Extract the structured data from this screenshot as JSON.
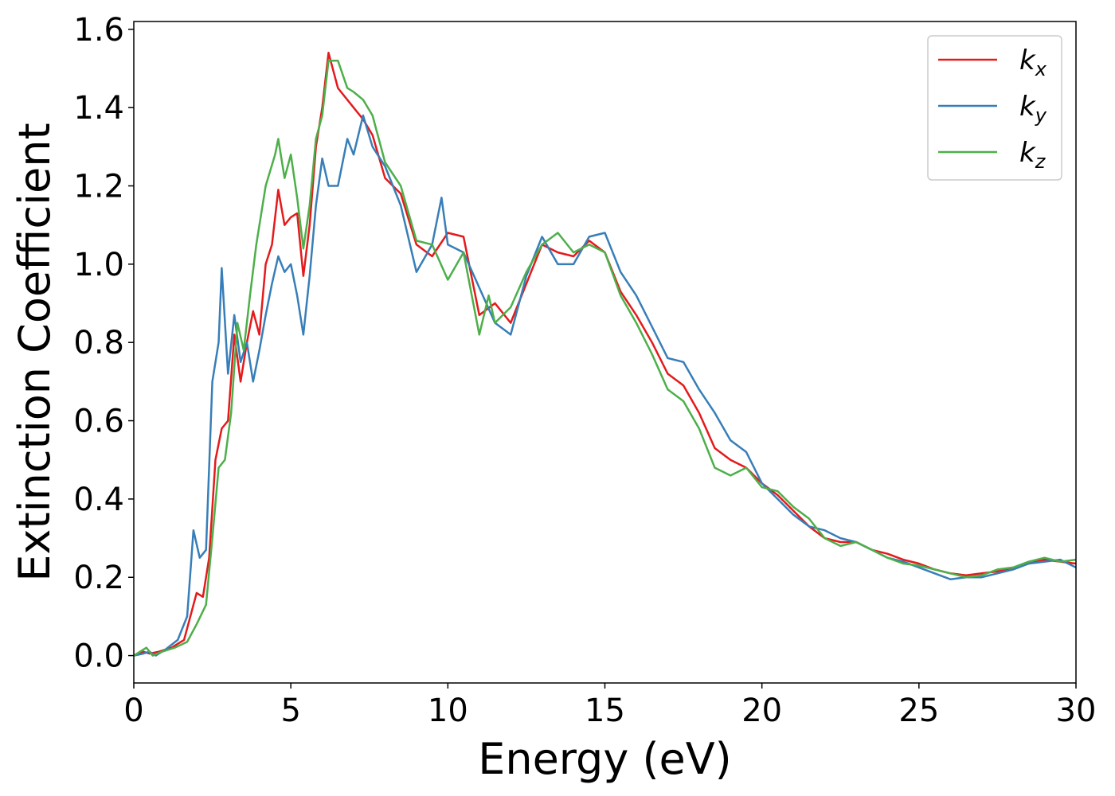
{
  "chart_data": {
    "type": "line",
    "title": "",
    "xlabel": "Energy (eV)",
    "ylabel": "Extinction Coefficient",
    "xlim": [
      0,
      30
    ],
    "ylim": [
      -0.07,
      1.62
    ],
    "xticks": [
      0,
      5,
      10,
      15,
      20,
      25,
      30
    ],
    "xtick_labels": [
      "0",
      "5",
      "10",
      "15",
      "20",
      "25",
      "30"
    ],
    "yticks": [
      0.0,
      0.2,
      0.4,
      0.6,
      0.8,
      1.0,
      1.2,
      1.4,
      1.6
    ],
    "ytick_labels": [
      "0.0",
      "0.2",
      "0.4",
      "0.6",
      "0.8",
      "1.0",
      "1.2",
      "1.4",
      "1.6"
    ],
    "grid": false,
    "legend_position": "top-right",
    "series": [
      {
        "name": "k",
        "subscript": "x",
        "color": "#e41a1c",
        "points": [
          [
            0,
            0
          ],
          [
            0.3,
            0.01
          ],
          [
            0.5,
            0.005
          ],
          [
            0.8,
            0.01
          ],
          [
            1.2,
            0.02
          ],
          [
            1.6,
            0.04
          ],
          [
            1.8,
            0.1
          ],
          [
            2.0,
            0.16
          ],
          [
            2.2,
            0.15
          ],
          [
            2.4,
            0.25
          ],
          [
            2.6,
            0.5
          ],
          [
            2.8,
            0.58
          ],
          [
            3.0,
            0.6
          ],
          [
            3.2,
            0.82
          ],
          [
            3.4,
            0.7
          ],
          [
            3.6,
            0.8
          ],
          [
            3.8,
            0.88
          ],
          [
            4.0,
            0.82
          ],
          [
            4.2,
            1.0
          ],
          [
            4.4,
            1.05
          ],
          [
            4.6,
            1.19
          ],
          [
            4.8,
            1.1
          ],
          [
            5.0,
            1.12
          ],
          [
            5.2,
            1.13
          ],
          [
            5.4,
            0.97
          ],
          [
            5.6,
            1.1
          ],
          [
            5.8,
            1.3
          ],
          [
            6.0,
            1.4
          ],
          [
            6.2,
            1.54
          ],
          [
            6.5,
            1.45
          ],
          [
            6.8,
            1.42
          ],
          [
            7.0,
            1.4
          ],
          [
            7.3,
            1.37
          ],
          [
            7.6,
            1.33
          ],
          [
            8.0,
            1.22
          ],
          [
            8.5,
            1.18
          ],
          [
            9.0,
            1.05
          ],
          [
            9.5,
            1.02
          ],
          [
            10.0,
            1.08
          ],
          [
            10.5,
            1.07
          ],
          [
            11.0,
            0.87
          ],
          [
            11.5,
            0.9
          ],
          [
            12.0,
            0.85
          ],
          [
            12.5,
            0.95
          ],
          [
            13.0,
            1.05
          ],
          [
            13.5,
            1.03
          ],
          [
            14.0,
            1.02
          ],
          [
            14.5,
            1.06
          ],
          [
            15.0,
            1.03
          ],
          [
            15.5,
            0.93
          ],
          [
            16.0,
            0.87
          ],
          [
            16.5,
            0.8
          ],
          [
            17.0,
            0.72
          ],
          [
            17.5,
            0.69
          ],
          [
            18.0,
            0.62
          ],
          [
            18.5,
            0.53
          ],
          [
            19.0,
            0.5
          ],
          [
            19.5,
            0.48
          ],
          [
            20.0,
            0.44
          ],
          [
            20.5,
            0.41
          ],
          [
            21.0,
            0.37
          ],
          [
            21.5,
            0.33
          ],
          [
            22.0,
            0.3
          ],
          [
            22.5,
            0.29
          ],
          [
            23.0,
            0.29
          ],
          [
            23.5,
            0.27
          ],
          [
            24.0,
            0.26
          ],
          [
            24.5,
            0.245
          ],
          [
            25.0,
            0.235
          ],
          [
            25.5,
            0.22
          ],
          [
            26.0,
            0.21
          ],
          [
            26.5,
            0.205
          ],
          [
            27.0,
            0.21
          ],
          [
            27.5,
            0.215
          ],
          [
            28.0,
            0.225
          ],
          [
            28.5,
            0.235
          ],
          [
            29.0,
            0.245
          ],
          [
            29.5,
            0.24
          ],
          [
            30.0,
            0.235
          ]
        ]
      },
      {
        "name": "k",
        "subscript": "y",
        "color": "#377eb8",
        "points": [
          [
            0,
            0
          ],
          [
            0.3,
            0.005
          ],
          [
            0.5,
            0.01
          ],
          [
            0.7,
            0.0
          ],
          [
            1.0,
            0.015
          ],
          [
            1.4,
            0.04
          ],
          [
            1.7,
            0.1
          ],
          [
            1.9,
            0.32
          ],
          [
            2.1,
            0.25
          ],
          [
            2.3,
            0.27
          ],
          [
            2.5,
            0.7
          ],
          [
            2.7,
            0.8
          ],
          [
            2.8,
            0.99
          ],
          [
            3.0,
            0.72
          ],
          [
            3.2,
            0.87
          ],
          [
            3.4,
            0.75
          ],
          [
            3.6,
            0.8
          ],
          [
            3.8,
            0.7
          ],
          [
            4.0,
            0.78
          ],
          [
            4.2,
            0.87
          ],
          [
            4.4,
            0.95
          ],
          [
            4.6,
            1.02
          ],
          [
            4.8,
            0.98
          ],
          [
            5.0,
            1.0
          ],
          [
            5.2,
            0.92
          ],
          [
            5.4,
            0.82
          ],
          [
            5.6,
            0.97
          ],
          [
            5.8,
            1.15
          ],
          [
            6.0,
            1.27
          ],
          [
            6.2,
            1.2
          ],
          [
            6.5,
            1.2
          ],
          [
            6.8,
            1.32
          ],
          [
            7.0,
            1.28
          ],
          [
            7.3,
            1.38
          ],
          [
            7.6,
            1.3
          ],
          [
            8.0,
            1.25
          ],
          [
            8.5,
            1.15
          ],
          [
            9.0,
            0.98
          ],
          [
            9.5,
            1.05
          ],
          [
            9.8,
            1.17
          ],
          [
            10.0,
            1.05
          ],
          [
            10.5,
            1.03
          ],
          [
            11.0,
            0.94
          ],
          [
            11.5,
            0.85
          ],
          [
            12.0,
            0.82
          ],
          [
            12.5,
            0.97
          ],
          [
            13.0,
            1.07
          ],
          [
            13.5,
            1.0
          ],
          [
            14.0,
            1.0
          ],
          [
            14.5,
            1.07
          ],
          [
            15.0,
            1.08
          ],
          [
            15.5,
            0.98
          ],
          [
            16.0,
            0.92
          ],
          [
            16.5,
            0.84
          ],
          [
            17.0,
            0.76
          ],
          [
            17.5,
            0.75
          ],
          [
            18.0,
            0.68
          ],
          [
            18.5,
            0.62
          ],
          [
            19.0,
            0.55
          ],
          [
            19.5,
            0.52
          ],
          [
            20.0,
            0.44
          ],
          [
            20.5,
            0.4
          ],
          [
            21.0,
            0.36
          ],
          [
            21.5,
            0.33
          ],
          [
            22.0,
            0.32
          ],
          [
            22.5,
            0.3
          ],
          [
            23.0,
            0.29
          ],
          [
            23.5,
            0.27
          ],
          [
            24.0,
            0.25
          ],
          [
            24.5,
            0.24
          ],
          [
            25.0,
            0.225
          ],
          [
            25.5,
            0.21
          ],
          [
            26.0,
            0.195
          ],
          [
            26.5,
            0.2
          ],
          [
            27.0,
            0.2
          ],
          [
            27.5,
            0.21
          ],
          [
            28.0,
            0.22
          ],
          [
            28.5,
            0.235
          ],
          [
            29.0,
            0.24
          ],
          [
            29.5,
            0.245
          ],
          [
            30.0,
            0.225
          ]
        ]
      },
      {
        "name": "k",
        "subscript": "z",
        "color": "#4daf4a",
        "points": [
          [
            0,
            0
          ],
          [
            0.4,
            0.02
          ],
          [
            0.6,
            0.0
          ],
          [
            0.9,
            0.01
          ],
          [
            1.3,
            0.02
          ],
          [
            1.7,
            0.035
          ],
          [
            2.0,
            0.08
          ],
          [
            2.3,
            0.13
          ],
          [
            2.5,
            0.3
          ],
          [
            2.7,
            0.48
          ],
          [
            2.9,
            0.5
          ],
          [
            3.1,
            0.62
          ],
          [
            3.3,
            0.85
          ],
          [
            3.5,
            0.78
          ],
          [
            3.7,
            0.92
          ],
          [
            3.9,
            1.05
          ],
          [
            4.2,
            1.2
          ],
          [
            4.5,
            1.28
          ],
          [
            4.6,
            1.32
          ],
          [
            4.8,
            1.22
          ],
          [
            5.0,
            1.28
          ],
          [
            5.2,
            1.17
          ],
          [
            5.4,
            1.04
          ],
          [
            5.6,
            1.15
          ],
          [
            5.8,
            1.32
          ],
          [
            6.0,
            1.38
          ],
          [
            6.2,
            1.52
          ],
          [
            6.5,
            1.52
          ],
          [
            6.8,
            1.45
          ],
          [
            7.0,
            1.44
          ],
          [
            7.3,
            1.42
          ],
          [
            7.6,
            1.38
          ],
          [
            8.0,
            1.26
          ],
          [
            8.5,
            1.2
          ],
          [
            9.0,
            1.06
          ],
          [
            9.5,
            1.05
          ],
          [
            10.0,
            0.96
          ],
          [
            10.5,
            1.03
          ],
          [
            11.0,
            0.82
          ],
          [
            11.3,
            0.92
          ],
          [
            11.5,
            0.85
          ],
          [
            12.0,
            0.89
          ],
          [
            12.5,
            0.98
          ],
          [
            13.0,
            1.05
          ],
          [
            13.5,
            1.08
          ],
          [
            14.0,
            1.03
          ],
          [
            14.5,
            1.05
          ],
          [
            15.0,
            1.03
          ],
          [
            15.5,
            0.92
          ],
          [
            16.0,
            0.85
          ],
          [
            16.5,
            0.77
          ],
          [
            17.0,
            0.68
          ],
          [
            17.5,
            0.65
          ],
          [
            18.0,
            0.58
          ],
          [
            18.5,
            0.48
          ],
          [
            19.0,
            0.46
          ],
          [
            19.5,
            0.48
          ],
          [
            20.0,
            0.43
          ],
          [
            20.5,
            0.42
          ],
          [
            21.0,
            0.38
          ],
          [
            21.5,
            0.35
          ],
          [
            22.0,
            0.3
          ],
          [
            22.5,
            0.28
          ],
          [
            23.0,
            0.29
          ],
          [
            23.5,
            0.27
          ],
          [
            24.0,
            0.25
          ],
          [
            24.5,
            0.235
          ],
          [
            25.0,
            0.23
          ],
          [
            25.5,
            0.22
          ],
          [
            26.0,
            0.21
          ],
          [
            26.5,
            0.2
          ],
          [
            27.0,
            0.205
          ],
          [
            27.5,
            0.22
          ],
          [
            28.0,
            0.225
          ],
          [
            28.5,
            0.24
          ],
          [
            29.0,
            0.25
          ],
          [
            29.5,
            0.24
          ],
          [
            30.0,
            0.245
          ]
        ]
      }
    ]
  }
}
